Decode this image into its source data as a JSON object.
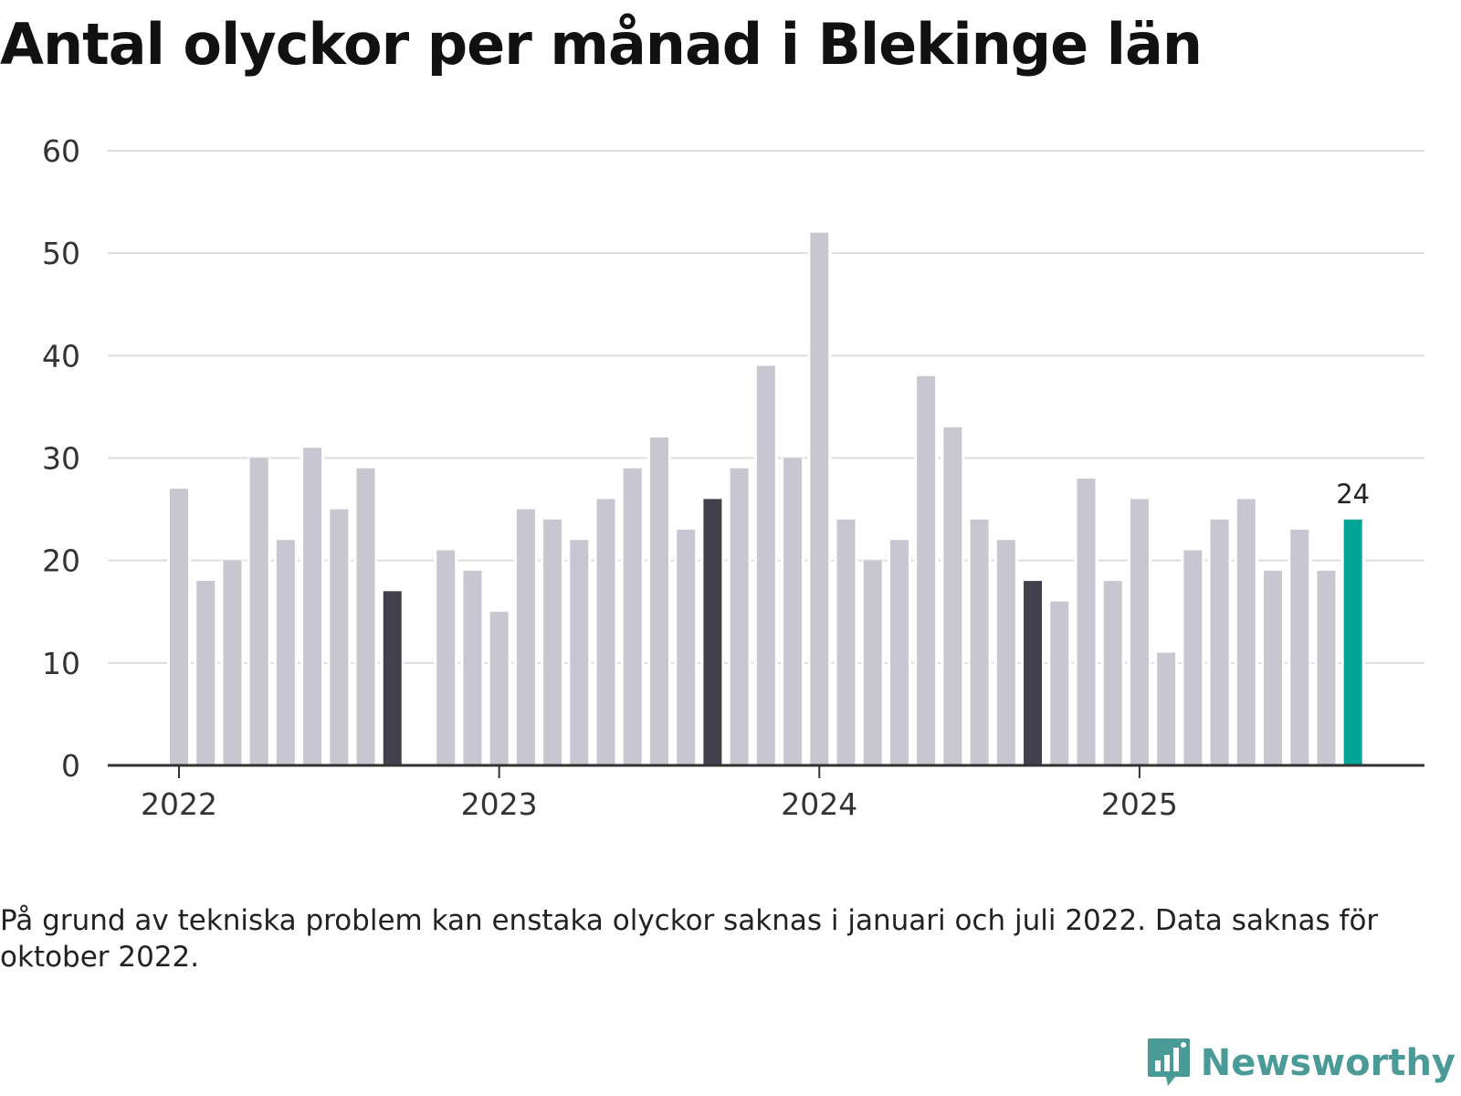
{
  "title": "Antal olyckor per månad i Blekinge län",
  "note": "På grund av tekniska problem kan enstaka olyckor saknas i januari och juli 2022. Data saknas för oktober 2022.",
  "brand": {
    "name": "Newsworthy",
    "icon": "newsworthy-logo-icon"
  },
  "colors": {
    "default_bar": "#c8c7d1",
    "highlight_bar": "#42404d",
    "latest_bar": "#00a598",
    "grid": "#dddddd",
    "axis": "#333333",
    "text": "#333333"
  },
  "chart_data": {
    "type": "bar",
    "title": "Antal olyckor per månad i Blekinge län",
    "xlabel": "",
    "ylabel": "",
    "ylim": [
      0,
      60
    ],
    "y_ticks": [
      0,
      10,
      20,
      30,
      40,
      50,
      60
    ],
    "grid": true,
    "x_tick_labels": [
      "2022",
      "2023",
      "2024",
      "2025"
    ],
    "categories": [
      "2022-01",
      "2022-02",
      "2022-03",
      "2022-04",
      "2022-05",
      "2022-06",
      "2022-07",
      "2022-08",
      "2022-09",
      "2022-10",
      "2022-11",
      "2022-12",
      "2023-01",
      "2023-02",
      "2023-03",
      "2023-04",
      "2023-05",
      "2023-06",
      "2023-07",
      "2023-08",
      "2023-09",
      "2023-10",
      "2023-11",
      "2023-12",
      "2024-01",
      "2024-02",
      "2024-03",
      "2024-04",
      "2024-05",
      "2024-06",
      "2024-07",
      "2024-08",
      "2024-09",
      "2024-10",
      "2024-11",
      "2024-12",
      "2025-01",
      "2025-02",
      "2025-03",
      "2025-04",
      "2025-05",
      "2025-06",
      "2025-07",
      "2025-08",
      "2025-09"
    ],
    "values": [
      27,
      18,
      20,
      30,
      22,
      31,
      25,
      29,
      17,
      null,
      21,
      19,
      15,
      25,
      24,
      22,
      26,
      29,
      32,
      23,
      26,
      29,
      39,
      30,
      52,
      24,
      20,
      22,
      38,
      33,
      24,
      22,
      18,
      16,
      28,
      18,
      26,
      11,
      21,
      24,
      26,
      19,
      23,
      19,
      24
    ],
    "highlight_months": [
      "2022-09",
      "2023-09",
      "2024-09"
    ],
    "latest_month": "2025-09",
    "value_labels": [
      {
        "category": "2025-09",
        "text": "24"
      }
    ]
  }
}
